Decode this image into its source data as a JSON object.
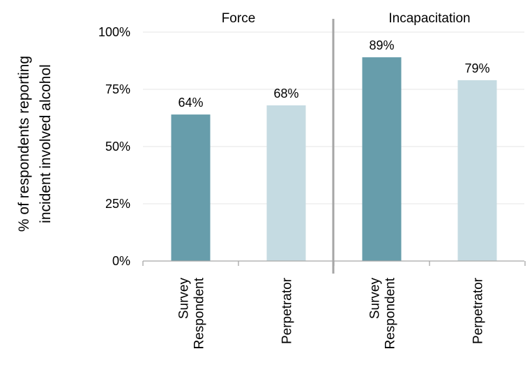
{
  "chart_data": {
    "type": "bar",
    "groups": [
      {
        "name": "Force",
        "bars": [
          {
            "category": [
              "Survey",
              "Respondent"
            ],
            "value": 64,
            "label": "64%"
          },
          {
            "category": [
              "Perpetrator"
            ],
            "value": 68,
            "label": "68%"
          }
        ]
      },
      {
        "name": "Incapacitation",
        "bars": [
          {
            "category": [
              "Survey",
              "Respondent"
            ],
            "value": 89,
            "label": "89%"
          },
          {
            "category": [
              "Perpetrator"
            ],
            "value": 79,
            "label": "79%"
          }
        ]
      }
    ],
    "ylabel": [
      "% of respondents reporting",
      "incident involved alcohol"
    ],
    "ylim": [
      0,
      100
    ],
    "yticks": [
      0,
      25,
      50,
      75,
      100
    ],
    "ytick_labels": [
      "0%",
      "25%",
      "50%",
      "75%",
      "100%"
    ],
    "grid": true,
    "colors": {
      "Survey Respondent": "#679dab",
      "Perpetrator": "#c5dbe2",
      "gridline": "#e6e6e6",
      "axis": "#a6a6a6",
      "divider": "#a6a6a6"
    }
  }
}
